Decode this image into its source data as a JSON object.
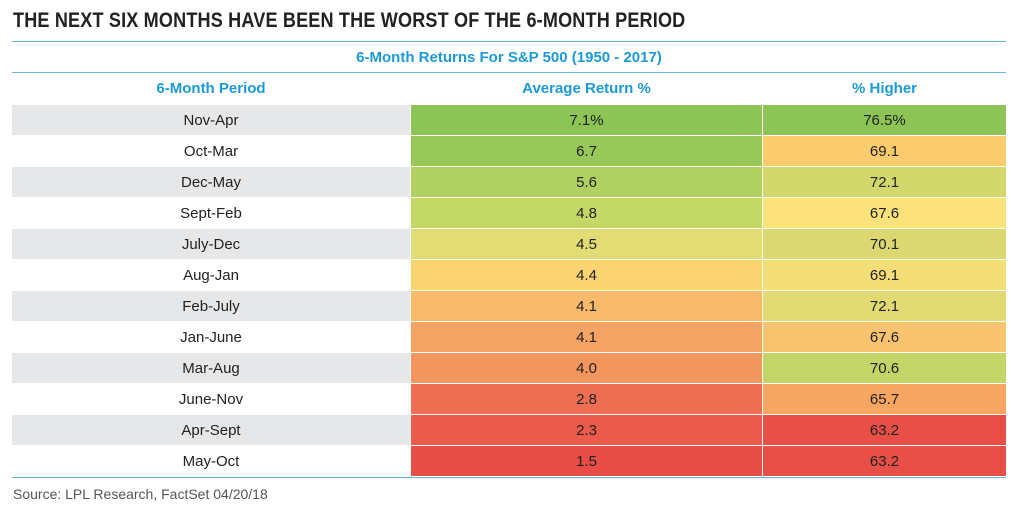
{
  "title": "THE NEXT SIX MONTHS HAVE BEEN THE WORST OF THE 6-MONTH PERIOD",
  "subtitle": "6-Month Returns For S&P 500 (1950 - 2017)",
  "source": "Source: LPL Research, FactSet 04/20/18",
  "chart_data": {
    "type": "table",
    "columns": [
      "6-Month Period",
      "Average Return %",
      "% Higher"
    ],
    "rows": [
      {
        "period": "Nov-Apr",
        "avg": "7.1%",
        "hi": "76.5%",
        "avg_color": "#8cc455",
        "hi_color": "#8cc455"
      },
      {
        "period": "Oct-Mar",
        "avg": "6.7",
        "hi": "69.1",
        "avg_color": "#99c85a",
        "hi_color": "#fbcc6d"
      },
      {
        "period": "Dec-May",
        "avg": "5.6",
        "hi": "72.1",
        "avg_color": "#b0d162",
        "hi_color": "#d3d86d"
      },
      {
        "period": "Sept-Feb",
        "avg": "4.8",
        "hi": "67.6",
        "avg_color": "#c4d867",
        "hi_color": "#fbe27a"
      },
      {
        "period": "July-Dec",
        "avg": "4.5",
        "hi": "70.1",
        "avg_color": "#e1dc73",
        "hi_color": "#dcd871"
      },
      {
        "period": "Aug-Jan",
        "avg": "4.4",
        "hi": "69.1",
        "avg_color": "#fbd472",
        "hi_color": "#f4de78"
      },
      {
        "period": "Feb-July",
        "avg": "4.1",
        "hi": "72.1",
        "avg_color": "#f8b96a",
        "hi_color": "#e2da73"
      },
      {
        "period": "Jan-June",
        "avg": "4.1",
        "hi": "67.6",
        "avg_color": "#f5a465",
        "hi_color": "#f9c46f"
      },
      {
        "period": "Mar-Aug",
        "avg": "4.0",
        "hi": "70.6",
        "avg_color": "#f3955f",
        "hi_color": "#c3d567"
      },
      {
        "period": "June-Nov",
        "avg": "2.8",
        "hi": "65.7",
        "avg_color": "#ee6e53",
        "hi_color": "#f6a563"
      },
      {
        "period": "Apr-Sept",
        "avg": "2.3",
        "hi": "63.2",
        "avg_color": "#ea5b4c",
        "hi_color": "#e84f47"
      },
      {
        "period": "May-Oct",
        "avg": "1.5",
        "hi": "63.2",
        "avg_color": "#e84e47",
        "hi_color": "#e84f47"
      }
    ],
    "period_bg_odd": "#e6e7e9",
    "period_bg_even": "#ffffff"
  }
}
